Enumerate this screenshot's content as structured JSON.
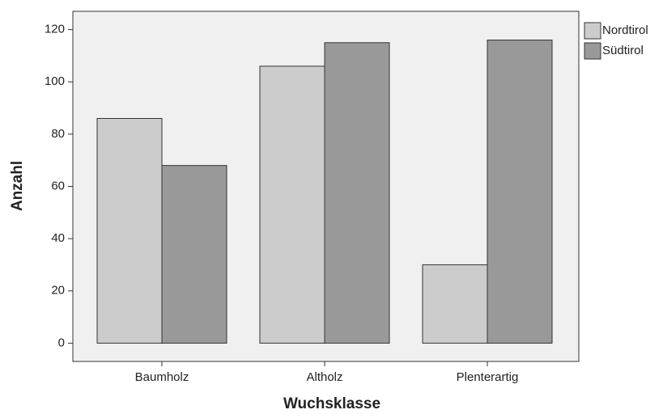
{
  "chart_data": {
    "type": "bar",
    "x_label": "Wuchsklasse",
    "y_label": "Anzahl",
    "categories": [
      "Baumholz",
      "Altholz",
      "Plenterartig"
    ],
    "series": [
      {
        "name": "Nordtirol",
        "color": "#cccccc",
        "values": [
          86,
          106,
          30
        ]
      },
      {
        "name": "Südtirol",
        "color": "#999999",
        "values": [
          68,
          115,
          116
        ]
      }
    ],
    "ylim": [
      -7,
      127
    ],
    "yticks": [
      0,
      20,
      40,
      60,
      80,
      100,
      120
    ],
    "grid": false,
    "legend": "right"
  }
}
